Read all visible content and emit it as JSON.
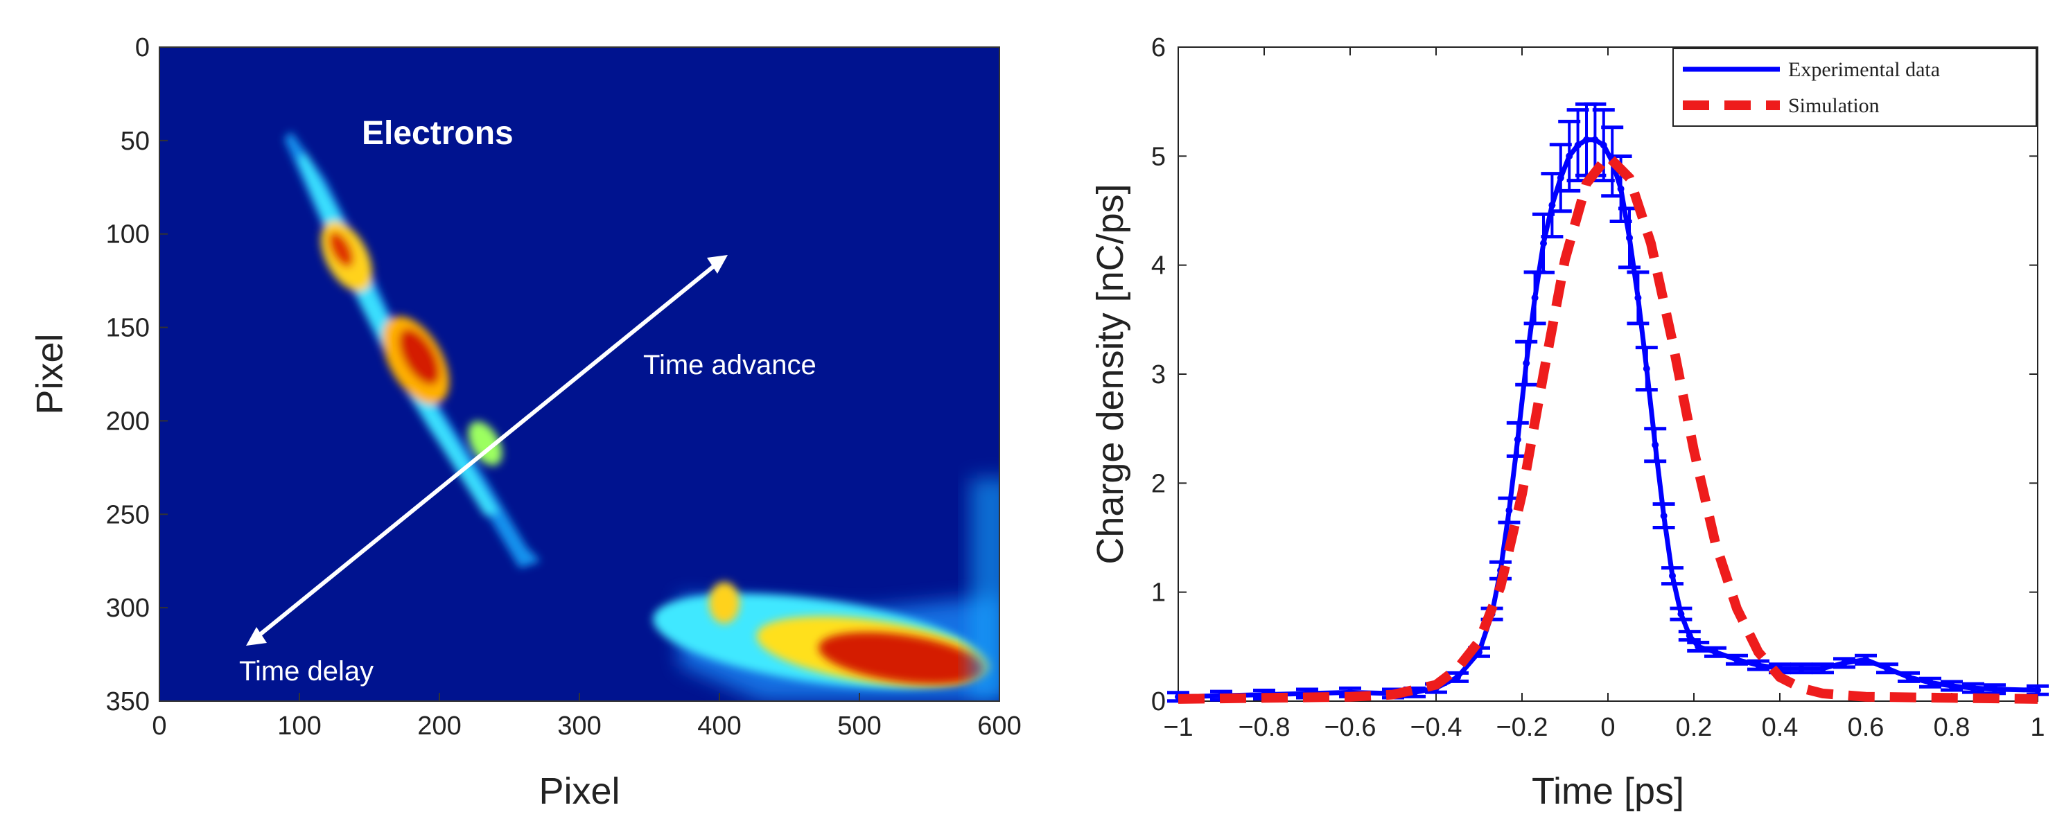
{
  "chart_data": [
    {
      "type": "heatmap",
      "title": "",
      "xlabel": "Pixel",
      "ylabel": "Pixel",
      "xlim": [
        0,
        600
      ],
      "ylim": [
        350,
        0
      ],
      "xticks": [
        "0",
        "100",
        "200",
        "300",
        "400",
        "500",
        "600"
      ],
      "yticks": [
        "0",
        "50",
        "100",
        "150",
        "200",
        "250",
        "300",
        "350"
      ],
      "colormap": "jet",
      "background_color": "#00138f",
      "annotations": {
        "species": "Electrons",
        "arrow_advance": "Time advance",
        "arrow_delay": "Time delay"
      }
    },
    {
      "type": "line",
      "title": "",
      "xlabel": "Time [ps]",
      "ylabel": "Charge density [nC/ps]",
      "xlim": [
        -1,
        1
      ],
      "ylim": [
        0,
        6
      ],
      "xticks": [
        "-1",
        "-0.8",
        "-0.6",
        "-0.4",
        "-0.2",
        "0",
        "0.2",
        "0.4",
        "0.6",
        "0.8",
        "1"
      ],
      "yticks": [
        "0",
        "1",
        "2",
        "3",
        "4",
        "5",
        "6"
      ],
      "grid": false,
      "legend": "top-right",
      "series": [
        {
          "name": "Experimental data",
          "style": "solid-with-errorbars",
          "color": "#0000ff",
          "x": [
            -1.0,
            -0.9,
            -0.8,
            -0.7,
            -0.6,
            -0.5,
            -0.45,
            -0.4,
            -0.35,
            -0.3,
            -0.27,
            -0.25,
            -0.23,
            -0.21,
            -0.19,
            -0.17,
            -0.15,
            -0.13,
            -0.11,
            -0.09,
            -0.07,
            -0.05,
            -0.03,
            -0.01,
            0.01,
            0.03,
            0.05,
            0.07,
            0.09,
            0.11,
            0.13,
            0.15,
            0.17,
            0.19,
            0.21,
            0.25,
            0.3,
            0.35,
            0.4,
            0.45,
            0.5,
            0.55,
            0.6,
            0.65,
            0.7,
            0.75,
            0.8,
            0.85,
            0.9,
            1.0
          ],
          "y": [
            0.04,
            0.05,
            0.06,
            0.07,
            0.08,
            0.07,
            0.08,
            0.12,
            0.22,
            0.45,
            0.8,
            1.2,
            1.75,
            2.4,
            3.1,
            3.7,
            4.2,
            4.55,
            4.8,
            5.0,
            5.1,
            5.15,
            5.15,
            5.1,
            4.95,
            4.7,
            4.25,
            3.7,
            3.05,
            2.35,
            1.7,
            1.15,
            0.8,
            0.6,
            0.5,
            0.45,
            0.38,
            0.33,
            0.3,
            0.3,
            0.3,
            0.35,
            0.38,
            0.3,
            0.22,
            0.17,
            0.14,
            0.12,
            0.11,
            0.1
          ]
        },
        {
          "name": "Simulation",
          "style": "dashed",
          "color": "#ee1c1c",
          "x": [
            -1.0,
            -0.8,
            -0.6,
            -0.5,
            -0.4,
            -0.35,
            -0.3,
            -0.25,
            -0.2,
            -0.15,
            -0.1,
            -0.05,
            0.0,
            0.05,
            0.1,
            0.15,
            0.2,
            0.25,
            0.3,
            0.35,
            0.4,
            0.45,
            0.5,
            0.6,
            0.8,
            1.0
          ],
          "y": [
            0.02,
            0.03,
            0.04,
            0.06,
            0.15,
            0.3,
            0.55,
            1.05,
            1.9,
            3.0,
            4.05,
            4.75,
            5.0,
            4.8,
            4.2,
            3.3,
            2.3,
            1.45,
            0.85,
            0.45,
            0.22,
            0.12,
            0.07,
            0.04,
            0.03,
            0.02
          ]
        }
      ]
    }
  ]
}
